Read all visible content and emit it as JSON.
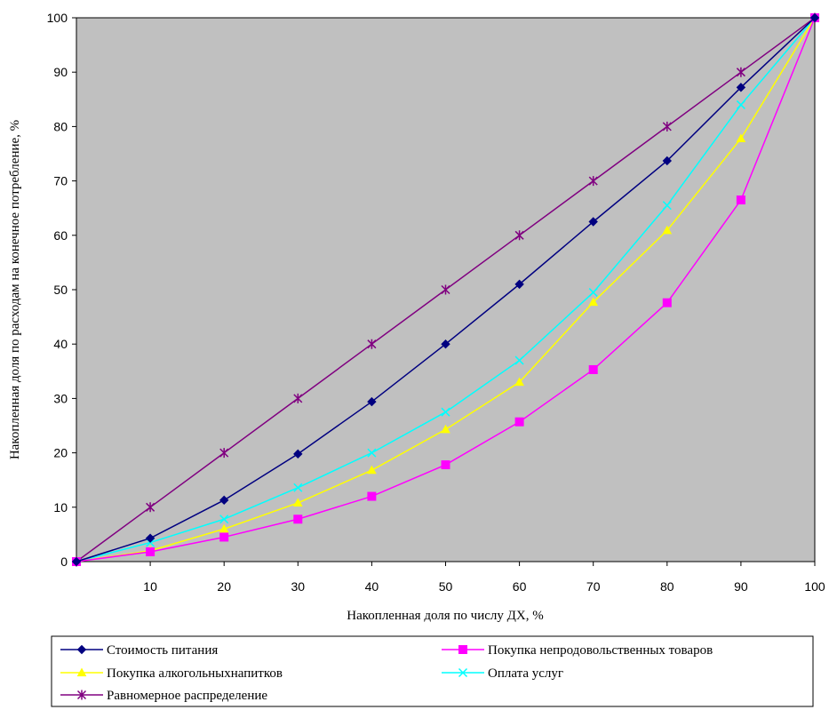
{
  "chart_data": {
    "type": "line",
    "xlabel": "Накопленная доля по числу ДХ, %",
    "ylabel": "Накопленная доля по расходам на конечное потребление, %",
    "x": [
      0,
      10,
      20,
      30,
      40,
      50,
      60,
      70,
      80,
      90,
      100
    ],
    "x_tick_labels": [
      "10",
      "20",
      "30",
      "40",
      "50",
      "60",
      "70",
      "80",
      "90",
      "100"
    ],
    "y_tick_labels": [
      "0",
      "10",
      "20",
      "30",
      "40",
      "50",
      "60",
      "70",
      "80",
      "90",
      "100"
    ],
    "xlim": [
      0,
      100
    ],
    "ylim": [
      0,
      100
    ],
    "plot_background": "#c0c0c0",
    "grid": false,
    "legend_position": "bottom",
    "series": [
      {
        "name": "Стоимость питания",
        "color": "#000080",
        "marker": "diamond",
        "values": [
          0,
          4.3,
          11.3,
          19.8,
          29.4,
          40,
          51,
          62.5,
          73.7,
          87.2,
          100
        ]
      },
      {
        "name": "Покупка непродовольственных товаров",
        "color": "#ff00ff",
        "marker": "square",
        "values": [
          0,
          1.8,
          4.5,
          7.8,
          12,
          17.8,
          25.7,
          35.3,
          47.6,
          66.5,
          100
        ]
      },
      {
        "name": "Покупка алкогольныхнапитков",
        "color": "#ffff00",
        "marker": "triangle",
        "values": [
          0,
          2,
          6,
          10.8,
          16.8,
          24.3,
          33,
          47.7,
          60.9,
          77.8,
          100
        ]
      },
      {
        "name": "Оплата услуг",
        "color": "#00ffff",
        "marker": "x",
        "values": [
          0,
          3.5,
          7.8,
          13.6,
          20,
          27.5,
          37,
          49.5,
          65.5,
          84,
          100
        ]
      },
      {
        "name": "Равномерное распределение",
        "color": "#800080",
        "marker": "star",
        "values": [
          0,
          10,
          20,
          30,
          40,
          50,
          60,
          70,
          80,
          90,
          100
        ]
      }
    ]
  }
}
